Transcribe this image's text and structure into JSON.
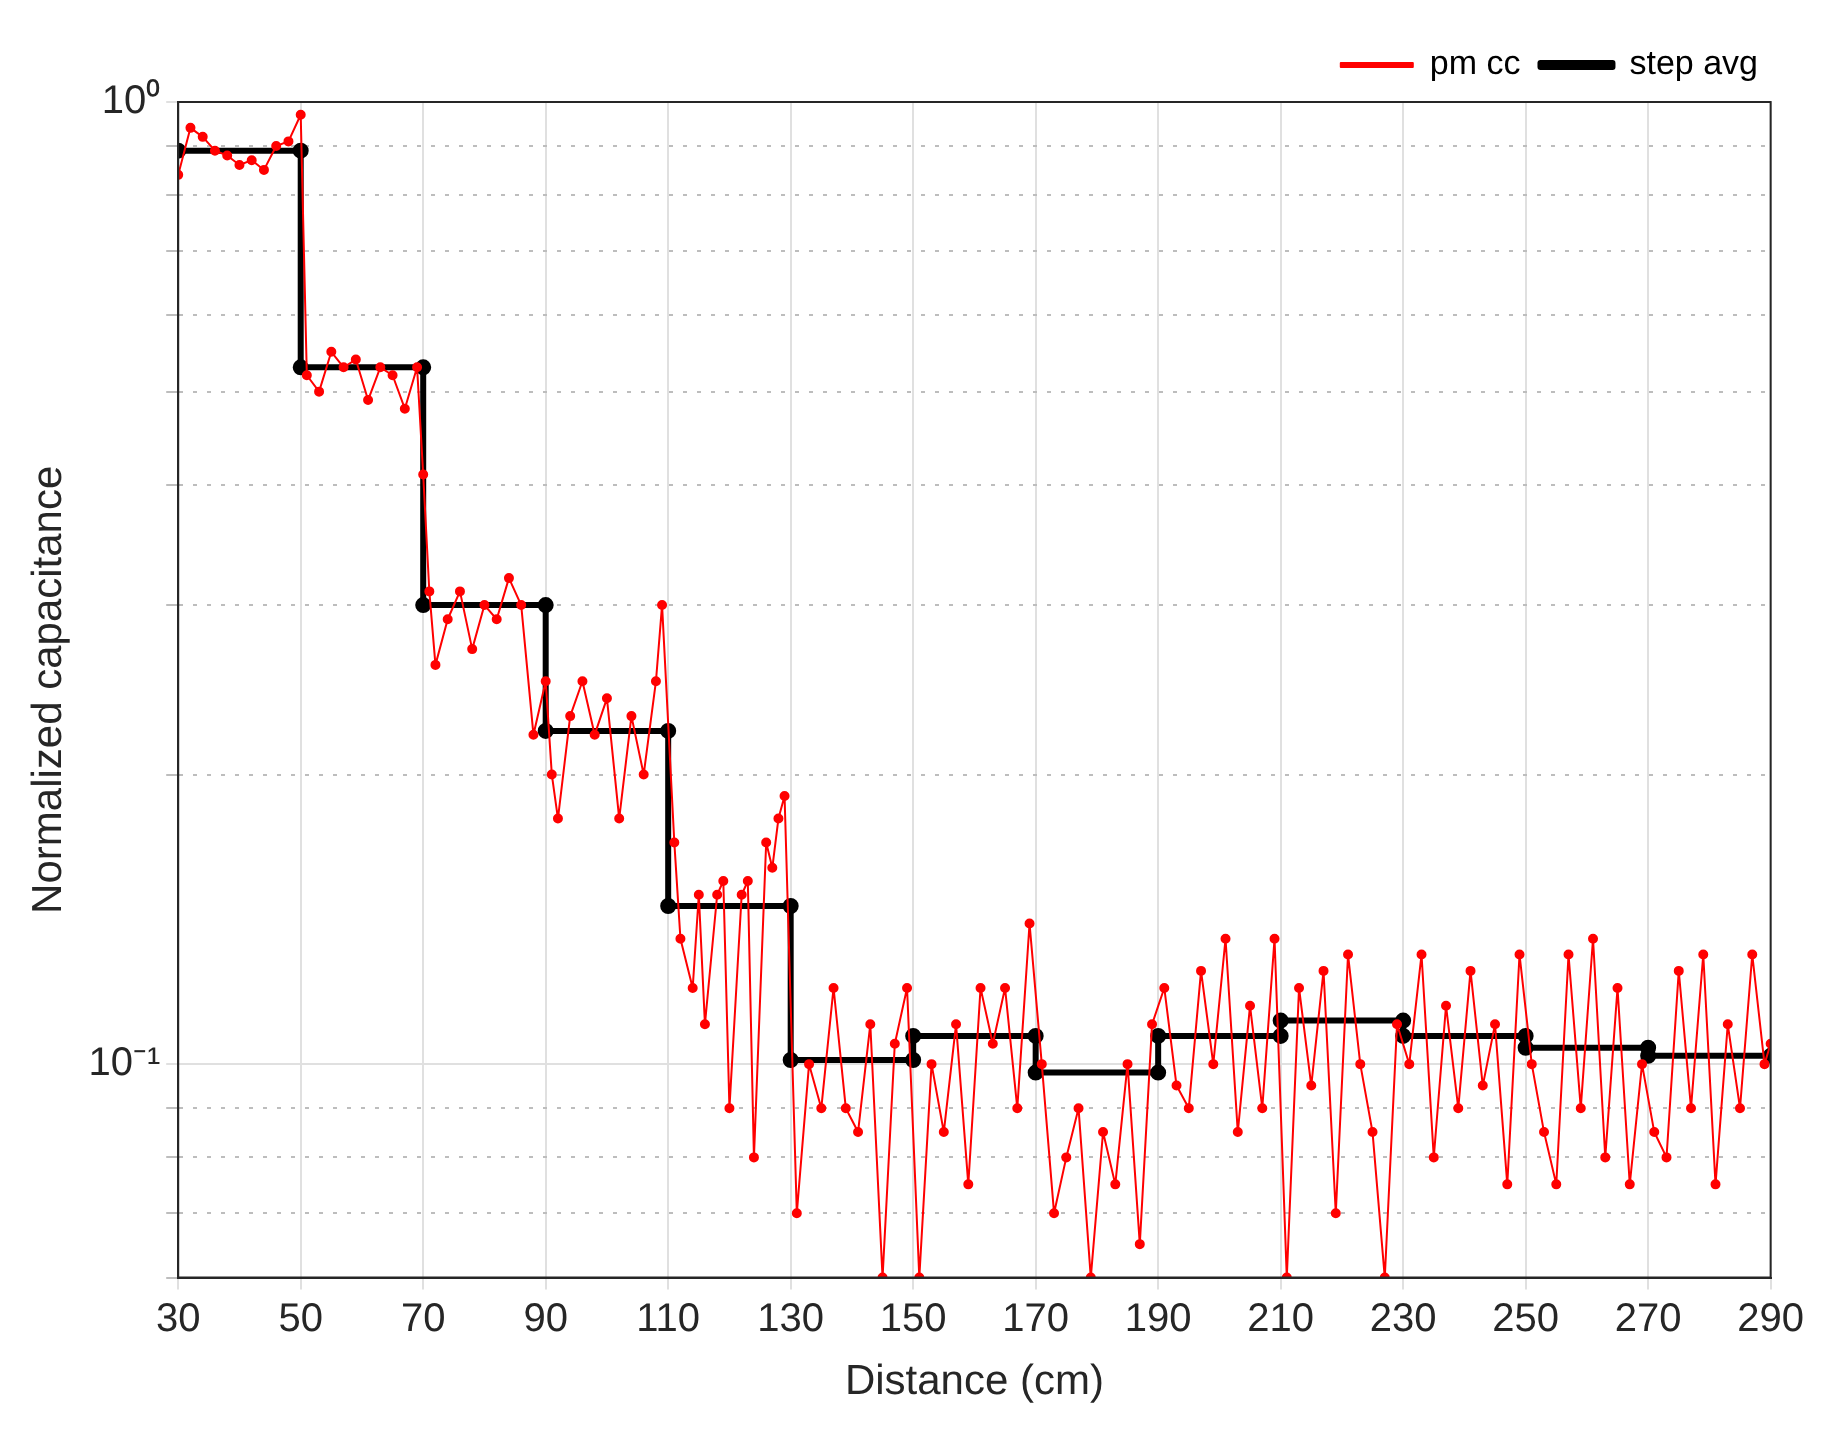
{
  "chart_data": {
    "type": "line",
    "xlabel": "Distance (cm)",
    "ylabel": "Normalized capacitance",
    "log": "y",
    "grid": true,
    "legend": "top right",
    "marker": "circle",
    "line_style": "solid",
    "xlim": [
      30,
      290
    ],
    "xticks": [
      30,
      50,
      70,
      90,
      110,
      130,
      150,
      170,
      190,
      210,
      230,
      250,
      270,
      290
    ],
    "ylim": [
      0.06,
      1
    ],
    "yticks": [
      {
        "value": 0.06,
        "label": null
      },
      {
        "value": 0.07,
        "label": null
      },
      {
        "value": 0.08,
        "label": null
      },
      {
        "value": 0.09,
        "label": null
      },
      {
        "value": 0.1,
        "label": "10⁻¹"
      },
      {
        "value": 0.2,
        "label": null
      },
      {
        "value": 0.3,
        "label": null
      },
      {
        "value": 0.4,
        "label": null
      },
      {
        "value": 0.5,
        "label": null
      },
      {
        "value": 0.6,
        "label": null
      },
      {
        "value": 0.7,
        "label": null
      },
      {
        "value": 0.8,
        "label": null
      },
      {
        "value": 0.9,
        "label": null
      },
      {
        "value": 1,
        "label": "10⁰"
      }
    ],
    "series": [
      {
        "name": "pm cc",
        "color": "#ff0000",
        "x": [
          30,
          32,
          34,
          36,
          38,
          40,
          42,
          44,
          46,
          48,
          50,
          51,
          53,
          55,
          57,
          59,
          61,
          63,
          65,
          67,
          69,
          70,
          71,
          72,
          74,
          76,
          78,
          80,
          82,
          84,
          86,
          88,
          90,
          91,
          92,
          94,
          96,
          98,
          100,
          102,
          104,
          106,
          108,
          109,
          111,
          112,
          114,
          115,
          116,
          118,
          119,
          120,
          122,
          123,
          124,
          126,
          127,
          128,
          129,
          131,
          133,
          135,
          137,
          139,
          141,
          143,
          145,
          147,
          149,
          151,
          153,
          155,
          157,
          159,
          161,
          163,
          165,
          167,
          169,
          171,
          173,
          175,
          177,
          179,
          181,
          183,
          185,
          187,
          189,
          191,
          193,
          195,
          197,
          199,
          201,
          203,
          205,
          207,
          209,
          211,
          213,
          215,
          217,
          219,
          221,
          223,
          225,
          227,
          229,
          231,
          233,
          235,
          237,
          239,
          241,
          243,
          245,
          247,
          249,
          251,
          253,
          255,
          257,
          259,
          261,
          263,
          265,
          267,
          269,
          271,
          273,
          275,
          277,
          279,
          281,
          283,
          285,
          287,
          289,
          290
        ],
        "values": [
          0.84,
          0.94,
          0.92,
          0.89,
          0.88,
          0.86,
          0.87,
          0.85,
          0.9,
          0.91,
          0.97,
          0.52,
          0.5,
          0.55,
          0.53,
          0.54,
          0.49,
          0.53,
          0.52,
          0.48,
          0.53,
          0.41,
          0.31,
          0.26,
          0.29,
          0.31,
          0.27,
          0.3,
          0.29,
          0.32,
          0.3,
          0.22,
          0.25,
          0.2,
          0.18,
          0.23,
          0.25,
          0.22,
          0.24,
          0.18,
          0.23,
          0.2,
          0.25,
          0.3,
          0.17,
          0.135,
          0.12,
          0.15,
          0.11,
          0.15,
          0.155,
          0.09,
          0.15,
          0.155,
          0.08,
          0.17,
          0.16,
          0.18,
          0.19,
          0.07,
          0.1,
          0.09,
          0.12,
          0.09,
          0.085,
          0.11,
          0.06,
          0.105,
          0.12,
          0.06,
          0.1,
          0.085,
          0.11,
          0.075,
          0.12,
          0.105,
          0.12,
          0.09,
          0.14,
          0.1,
          0.07,
          0.08,
          0.09,
          0.06,
          0.085,
          0.075,
          0.1,
          0.065,
          0.11,
          0.12,
          0.095,
          0.09,
          0.125,
          0.1,
          0.135,
          0.085,
          0.115,
          0.09,
          0.135,
          0.06,
          0.12,
          0.095,
          0.125,
          0.07,
          0.13,
          0.1,
          0.085,
          0.06,
          0.11,
          0.1,
          0.13,
          0.08,
          0.115,
          0.09,
          0.125,
          0.095,
          0.11,
          0.075,
          0.13,
          0.1,
          0.085,
          0.075,
          0.13,
          0.09,
          0.135,
          0.08,
          0.12,
          0.075,
          0.1,
          0.085,
          0.08,
          0.125,
          0.09,
          0.13,
          0.075,
          0.11,
          0.09,
          0.13,
          0.1,
          0.105
        ]
      },
      {
        "name": "step avg",
        "color": "#000000",
        "x": [
          30,
          50,
          50,
          70,
          70,
          90,
          90,
          110,
          110,
          130,
          130,
          150,
          150,
          170,
          170,
          190,
          190,
          210,
          210,
          230,
          230,
          250,
          250,
          270,
          270,
          290
        ],
        "values": [
          0.89,
          0.89,
          0.53,
          0.53,
          0.3,
          0.3,
          0.222,
          0.222,
          0.146,
          0.146,
          0.101,
          0.101,
          0.107,
          0.107,
          0.098,
          0.098,
          0.107,
          0.107,
          0.111,
          0.111,
          0.107,
          0.107,
          0.104,
          0.104,
          0.102,
          0.102
        ]
      }
    ]
  }
}
